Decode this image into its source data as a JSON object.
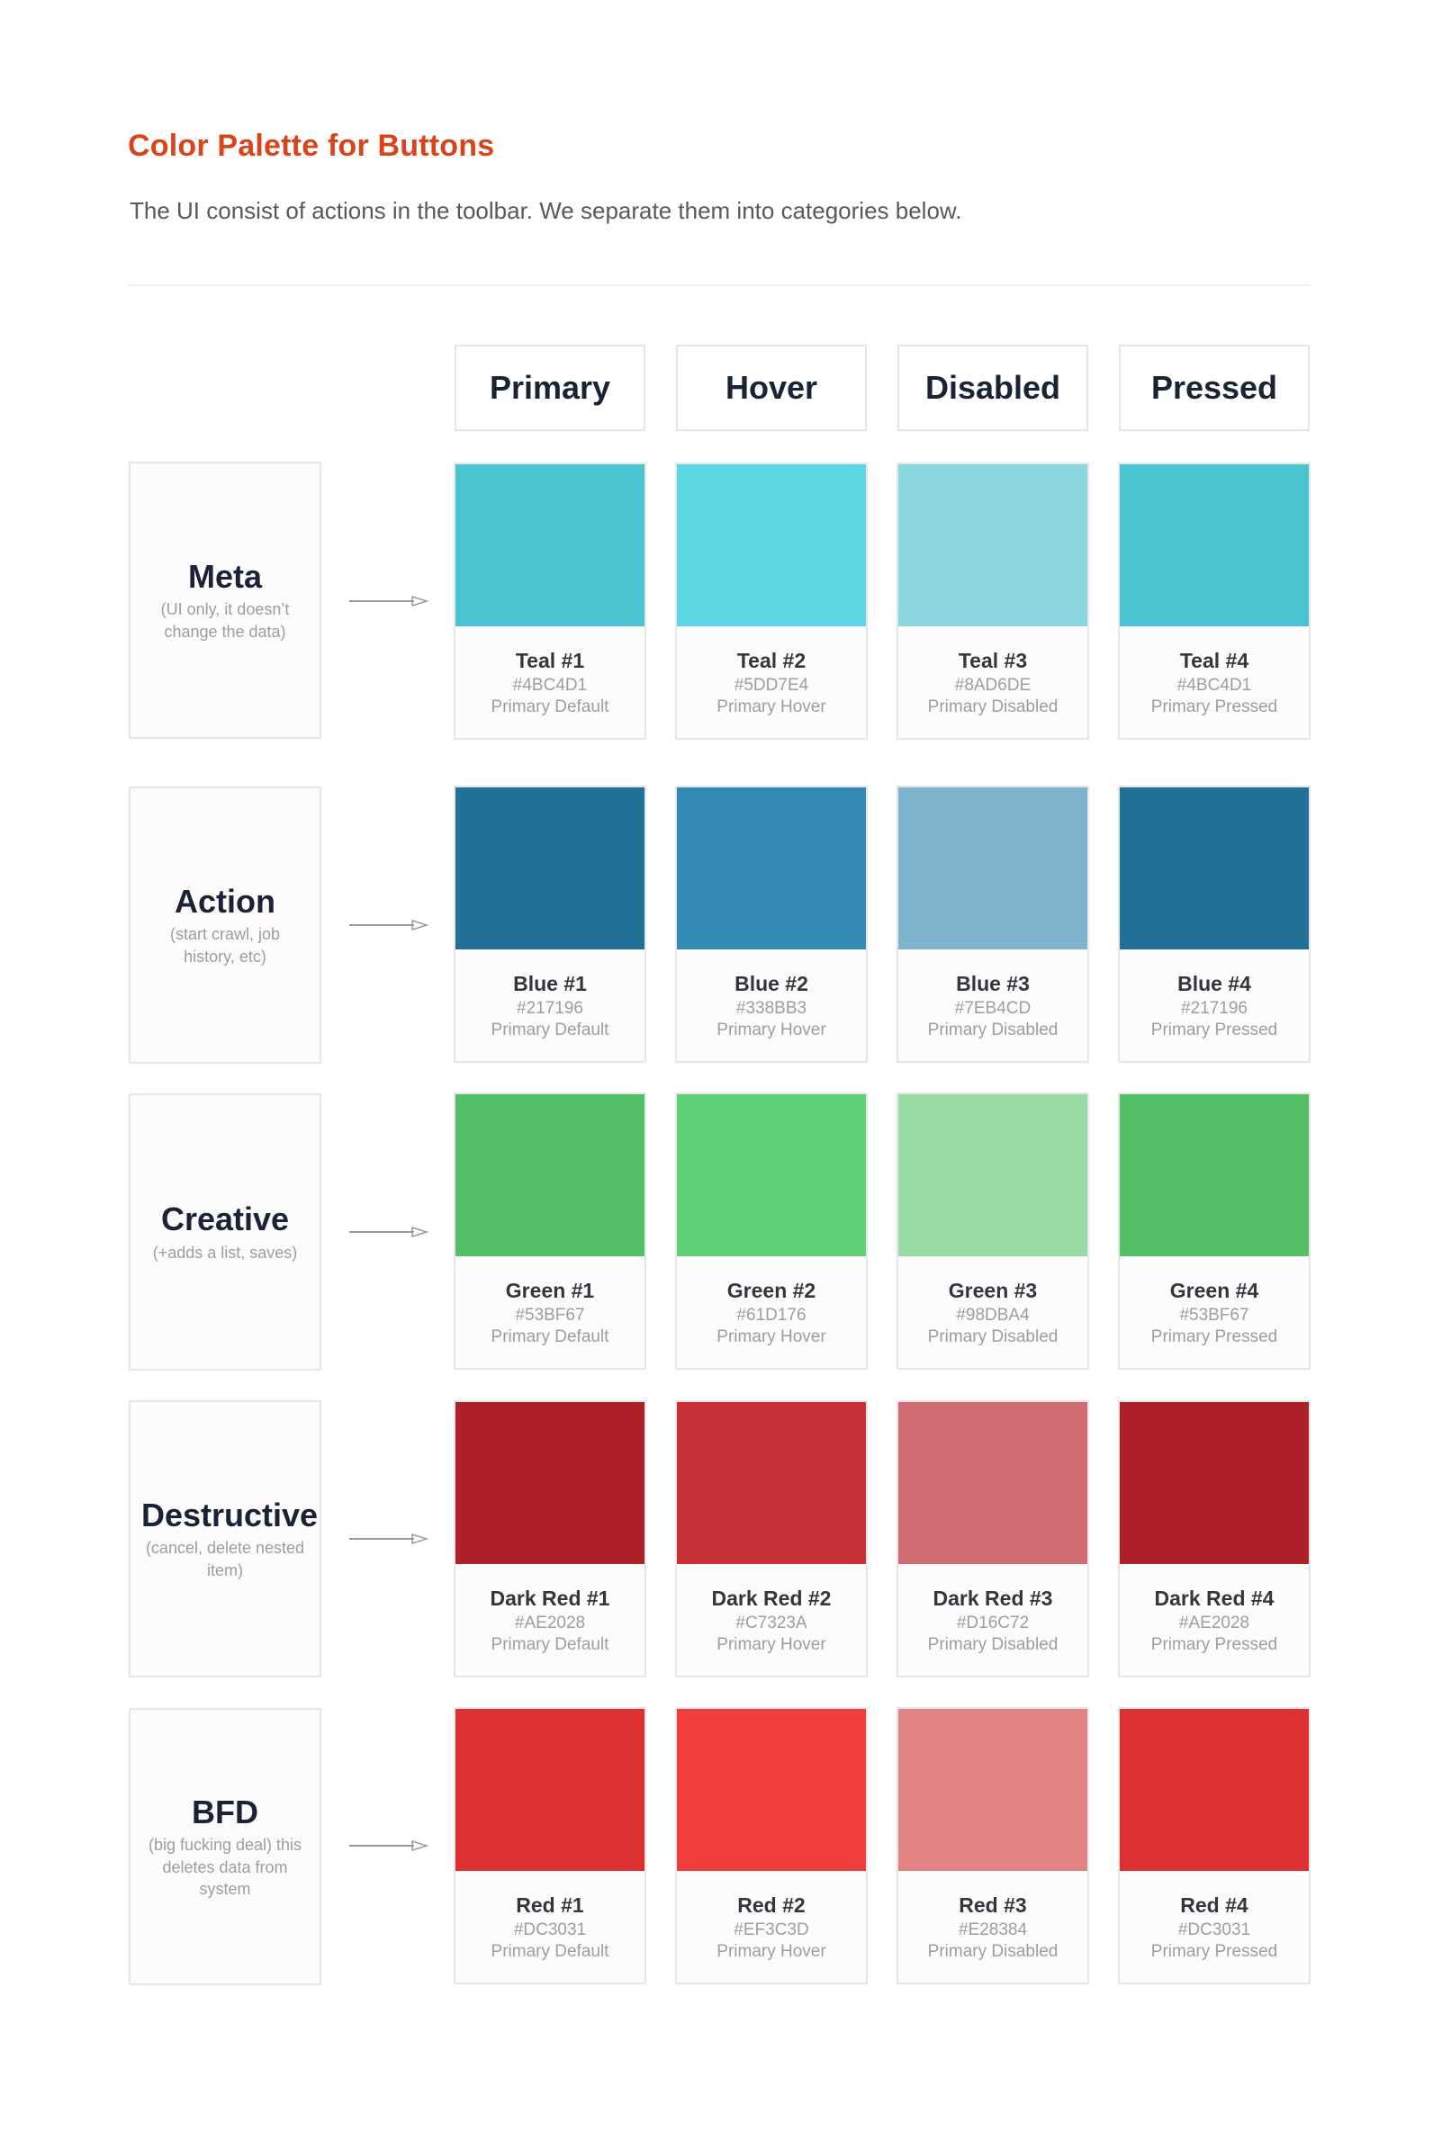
{
  "title": "Color Palette for Buttons",
  "subtitle": "The UI consist of actions in the toolbar. We separate them into categories below.",
  "columns": [
    "Primary",
    "Hover",
    "Disabled",
    "Pressed"
  ],
  "rows": [
    {
      "name": "Meta",
      "description": "(UI only, it doesn’t change the data)",
      "swatches": [
        {
          "name": "Teal #1",
          "hex": "#4BC4D1",
          "role": "Primary Default",
          "color": "#4BC4D1"
        },
        {
          "name": "Teal #2",
          "hex": "#5DD7E4",
          "role": "Primary Hover",
          "color": "#5DD7E4"
        },
        {
          "name": "Teal #3",
          "hex": "#8AD6DE",
          "role": "Primary Disabled",
          "color": "#8AD6DE"
        },
        {
          "name": "Teal #4",
          "hex": "#4BC4D1",
          "role": "Primary Pressed",
          "color": "#4BC4D1"
        }
      ]
    },
    {
      "name": "Action",
      "description": "(start crawl, job history, etc)",
      "swatches": [
        {
          "name": "Blue #1",
          "hex": "#217196",
          "role": "Primary Default",
          "color": "#217196"
        },
        {
          "name": "Blue #2",
          "hex": "#338BB3",
          "role": "Primary Hover",
          "color": "#338BB3"
        },
        {
          "name": "Blue #3",
          "hex": "#7EB4CD",
          "role": "Primary Disabled",
          "color": "#7EB4CD"
        },
        {
          "name": "Blue #4",
          "hex": "#217196",
          "role": "Primary Pressed",
          "color": "#217196"
        }
      ]
    },
    {
      "name": "Creative",
      "description": "(+adds a list, saves)",
      "swatches": [
        {
          "name": "Green #1",
          "hex": "#53BF67",
          "role": "Primary Default",
          "color": "#53BF67"
        },
        {
          "name": "Green #2",
          "hex": "#61D176",
          "role": "Primary Hover",
          "color": "#61D176"
        },
        {
          "name": "Green #3",
          "hex": "#98DBA4",
          "role": "Primary Disabled",
          "color": "#98DBA4"
        },
        {
          "name": "Green #4",
          "hex": "#53BF67",
          "role": "Primary Pressed",
          "color": "#53BF67"
        }
      ]
    },
    {
      "name": "Destructive",
      "description": "(cancel, delete nested item)",
      "swatches": [
        {
          "name": "Dark Red #1",
          "hex": "#AE2028",
          "role": "Primary Default",
          "color": "#AE2028"
        },
        {
          "name": "Dark Red #2",
          "hex": "#C7323A",
          "role": "Primary Hover",
          "color": "#C7323A"
        },
        {
          "name": "Dark Red #3",
          "hex": "#D16C72",
          "role": "Primary Disabled",
          "color": "#D16C72"
        },
        {
          "name": "Dark Red #4",
          "hex": "#AE2028",
          "role": "Primary Pressed",
          "color": "#AE2028"
        }
      ]
    },
    {
      "name": "BFD",
      "description": "(big fucking deal) this deletes data from system",
      "swatches": [
        {
          "name": "Red #1",
          "hex": "#DC3031",
          "role": "Primary Default",
          "color": "#DC3031"
        },
        {
          "name": "Red #2",
          "hex": "#EF3C3D",
          "role": "Primary Hover",
          "color": "#EF3C3D"
        },
        {
          "name": "Red #3",
          "hex": "#E28384",
          "role": "Primary Disabled",
          "color": "#E28384"
        },
        {
          "name": "Red #4",
          "hex": "#DC3031",
          "role": "Primary Pressed",
          "color": "#DC3031"
        }
      ]
    }
  ]
}
